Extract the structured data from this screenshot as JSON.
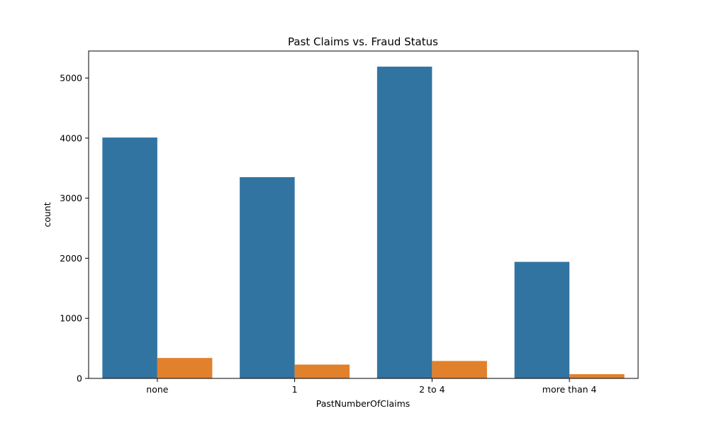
{
  "chart_data": {
    "type": "bar",
    "title": "Past Claims vs. Fraud Status",
    "xlabel": "PastNumberOfClaims",
    "ylabel": "count",
    "categories": [
      "none",
      "1",
      "2 to 4",
      "more than 4"
    ],
    "series": [
      {
        "values": [
          4010,
          3350,
          5190,
          1940
        ],
        "color": "#3274a1"
      },
      {
        "values": [
          340,
          230,
          290,
          70
        ],
        "color": "#e1812c"
      }
    ],
    "ylim": [
      0,
      5450
    ],
    "yticks": [
      0,
      1000,
      2000,
      3000,
      4000,
      5000
    ],
    "grid": false,
    "legend": "none"
  }
}
